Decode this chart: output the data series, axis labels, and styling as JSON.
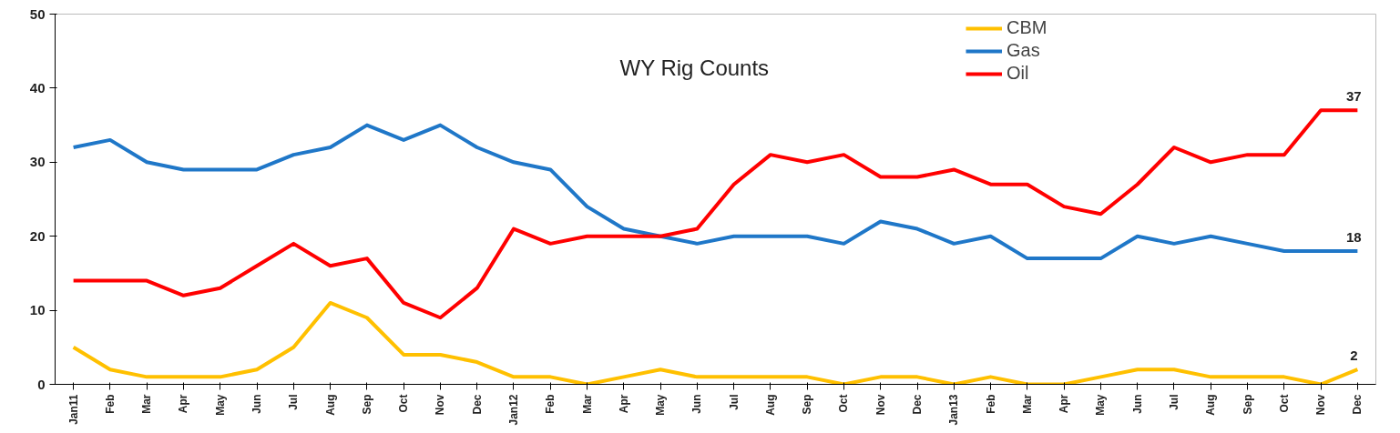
{
  "chart_data": {
    "type": "line",
    "title": "WY Rig Counts",
    "categories": [
      "Jan11",
      "Feb",
      "Mar",
      "Apr",
      "May",
      "Jun",
      "Jul",
      "Aug",
      "Sep",
      "Oct",
      "Nov",
      "Dec",
      "Jan12",
      "Feb",
      "Mar",
      "Apr",
      "May",
      "Jun",
      "Jul",
      "Aug",
      "Sep",
      "Oct",
      "Nov",
      "Dec",
      "Jan13",
      "Feb",
      "Mar",
      "Apr",
      "May",
      "Jun",
      "Jul",
      "Aug",
      "Sep",
      "Oct",
      "Nov",
      "Dec"
    ],
    "series": [
      {
        "name": "CBM",
        "color": "#ffc000",
        "values": [
          5,
          2,
          1,
          1,
          1,
          2,
          5,
          11,
          9,
          4,
          4,
          3,
          1,
          1,
          0,
          1,
          2,
          1,
          1,
          1,
          1,
          0,
          1,
          1,
          0,
          1,
          0,
          0,
          1,
          2,
          2,
          1,
          1,
          1,
          0,
          2
        ],
        "value_labels": [
          null,
          null,
          null,
          null,
          null,
          null,
          null,
          null,
          null,
          null,
          null,
          null,
          null,
          null,
          null,
          null,
          null,
          null,
          null,
          null,
          null,
          null,
          null,
          null,
          null,
          null,
          null,
          null,
          null,
          null,
          null,
          null,
          null,
          null,
          null,
          "2"
        ]
      },
      {
        "name": "Gas",
        "color": "#1f77c8",
        "values": [
          32,
          33,
          30,
          29,
          29,
          29,
          31,
          32,
          35,
          33,
          35,
          32,
          30,
          29,
          24,
          21,
          20,
          19,
          20,
          20,
          20,
          19,
          22,
          21,
          19,
          20,
          17,
          17,
          17,
          20,
          19,
          20,
          19,
          18,
          18,
          18
        ],
        "value_labels": [
          null,
          null,
          null,
          null,
          null,
          null,
          null,
          null,
          null,
          null,
          null,
          null,
          null,
          null,
          null,
          null,
          null,
          null,
          null,
          null,
          null,
          null,
          null,
          null,
          null,
          null,
          null,
          null,
          null,
          null,
          null,
          null,
          null,
          null,
          null,
          "18"
        ]
      },
      {
        "name": "Oil",
        "color": "#ff0000",
        "values": [
          14,
          14,
          14,
          12,
          13,
          16,
          19,
          16,
          17,
          11,
          9,
          13,
          21,
          19,
          20,
          20,
          20,
          21,
          27,
          31,
          30,
          31,
          28,
          28,
          29,
          27,
          27,
          24,
          23,
          27,
          32,
          30,
          31,
          31,
          37,
          37
        ],
        "value_labels": [
          null,
          null,
          null,
          null,
          null,
          null,
          null,
          null,
          null,
          null,
          null,
          null,
          null,
          null,
          null,
          null,
          null,
          null,
          null,
          null,
          null,
          null,
          null,
          null,
          null,
          null,
          null,
          null,
          null,
          null,
          null,
          null,
          null,
          null,
          null,
          "37"
        ]
      }
    ],
    "ylim": [
      0,
      50
    ],
    "yticks": [
      0,
      10,
      20,
      30,
      40,
      50
    ],
    "grid": false,
    "legend": "top right",
    "marker": "none",
    "line_style": "solid"
  }
}
